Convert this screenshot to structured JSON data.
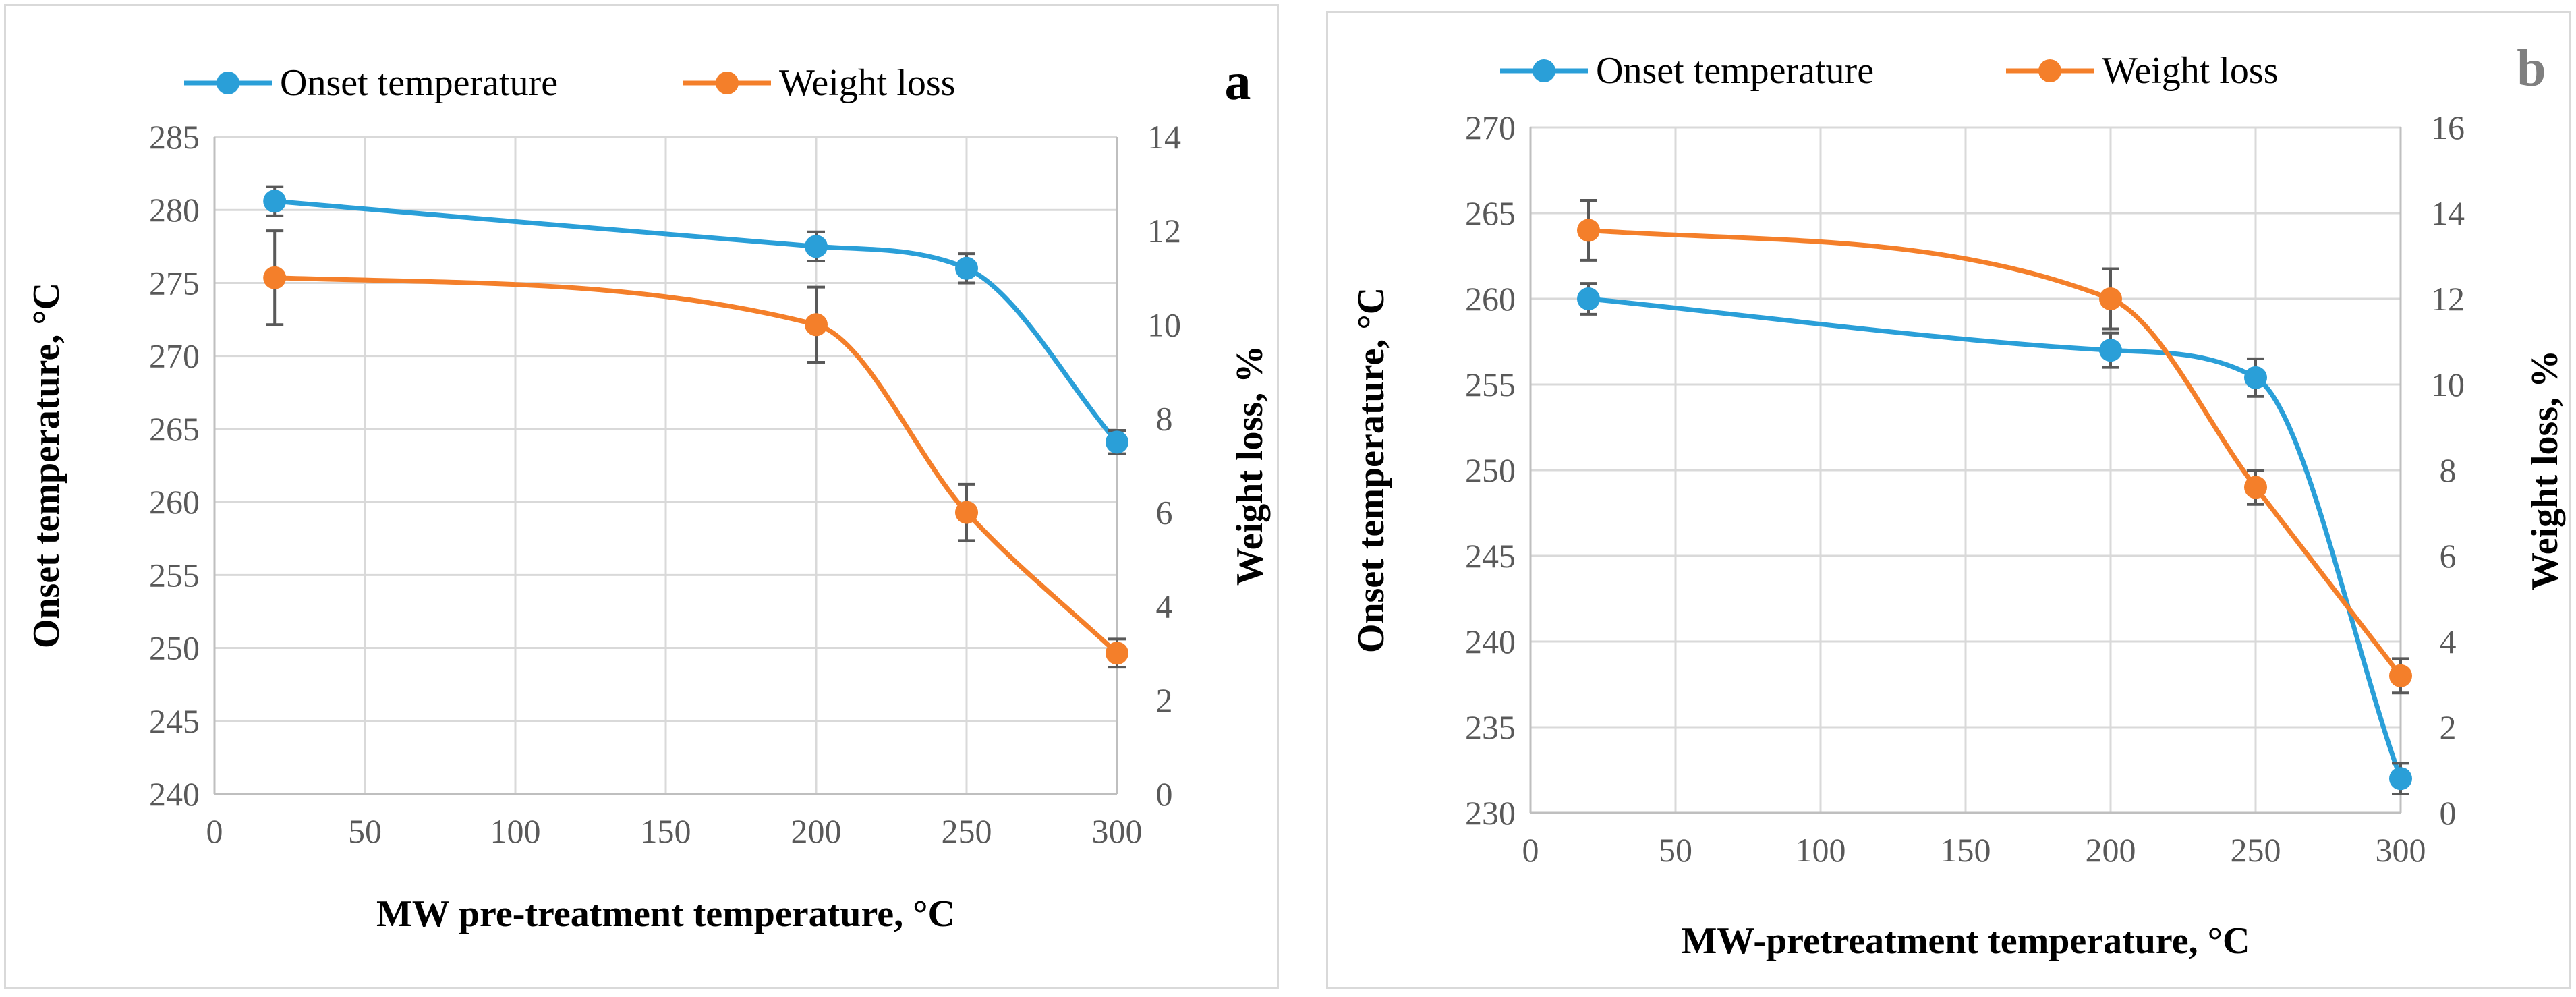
{
  "colors": {
    "onset": "#2A9FD8",
    "weight": "#F47F2A",
    "error_bar": "#595959"
  },
  "chart_data": [
    {
      "type": "line",
      "panel_label": "a",
      "panel_label_color": "#000000",
      "legend": [
        "Onset temperature",
        "Weight loss"
      ],
      "xlabel": "MW pre-treatment temperature, °C",
      "ylabel": "Onset temperature, °C",
      "y2label": "Weight loss, %",
      "xlim": [
        0,
        300
      ],
      "xticks": [
        0,
        50,
        100,
        150,
        200,
        250,
        300
      ],
      "ylim": [
        240,
        285
      ],
      "yticks": [
        240,
        245,
        250,
        255,
        260,
        265,
        270,
        275,
        280,
        285
      ],
      "y2lim": [
        0,
        14
      ],
      "y2ticks": [
        0,
        2,
        4,
        6,
        8,
        10,
        12,
        14
      ],
      "series": [
        {
          "name": "Onset temperature",
          "axis": "left",
          "color": "#2A9FD8",
          "x": [
            20,
            200,
            250,
            300
          ],
          "y": [
            280.6,
            277.5,
            276.0,
            264.1
          ],
          "err": [
            1.0,
            1.0,
            1.0,
            0.8
          ]
        },
        {
          "name": "Weight loss",
          "axis": "right",
          "color": "#F47F2A",
          "x": [
            20,
            200,
            250,
            300
          ],
          "y": [
            11.0,
            10.0,
            6.0,
            3.0
          ],
          "err": [
            1.0,
            0.8,
            0.6,
            0.3
          ]
        }
      ]
    },
    {
      "type": "line",
      "panel_label": "b",
      "panel_label_color": "#7f7f7f",
      "legend": [
        "Onset temperature",
        "Weight loss"
      ],
      "xlabel": "MW-pretreatment temperature, °C",
      "ylabel": "Onset temperature, °C",
      "y2label": "Weight loss, %",
      "xlim": [
        0,
        300
      ],
      "xticks": [
        0,
        50,
        100,
        150,
        200,
        250,
        300
      ],
      "ylim": [
        230,
        270
      ],
      "yticks": [
        230,
        235,
        240,
        245,
        250,
        255,
        260,
        265,
        270
      ],
      "y2lim": [
        0,
        16
      ],
      "y2ticks": [
        0,
        2,
        4,
        6,
        8,
        10,
        12,
        14,
        16
      ],
      "series": [
        {
          "name": "Onset temperature",
          "axis": "left",
          "color": "#2A9FD8",
          "x": [
            20,
            200,
            250,
            300
          ],
          "y": [
            260.0,
            257.0,
            255.4,
            232.0
          ],
          "err": [
            0.9,
            1.0,
            1.1,
            0.9
          ]
        },
        {
          "name": "Weight loss",
          "axis": "right",
          "color": "#F47F2A",
          "x": [
            20,
            200,
            250,
            300
          ],
          "y": [
            13.6,
            12.0,
            7.6,
            3.2
          ],
          "err": [
            0.7,
            0.7,
            0.4,
            0.4
          ]
        }
      ]
    }
  ]
}
